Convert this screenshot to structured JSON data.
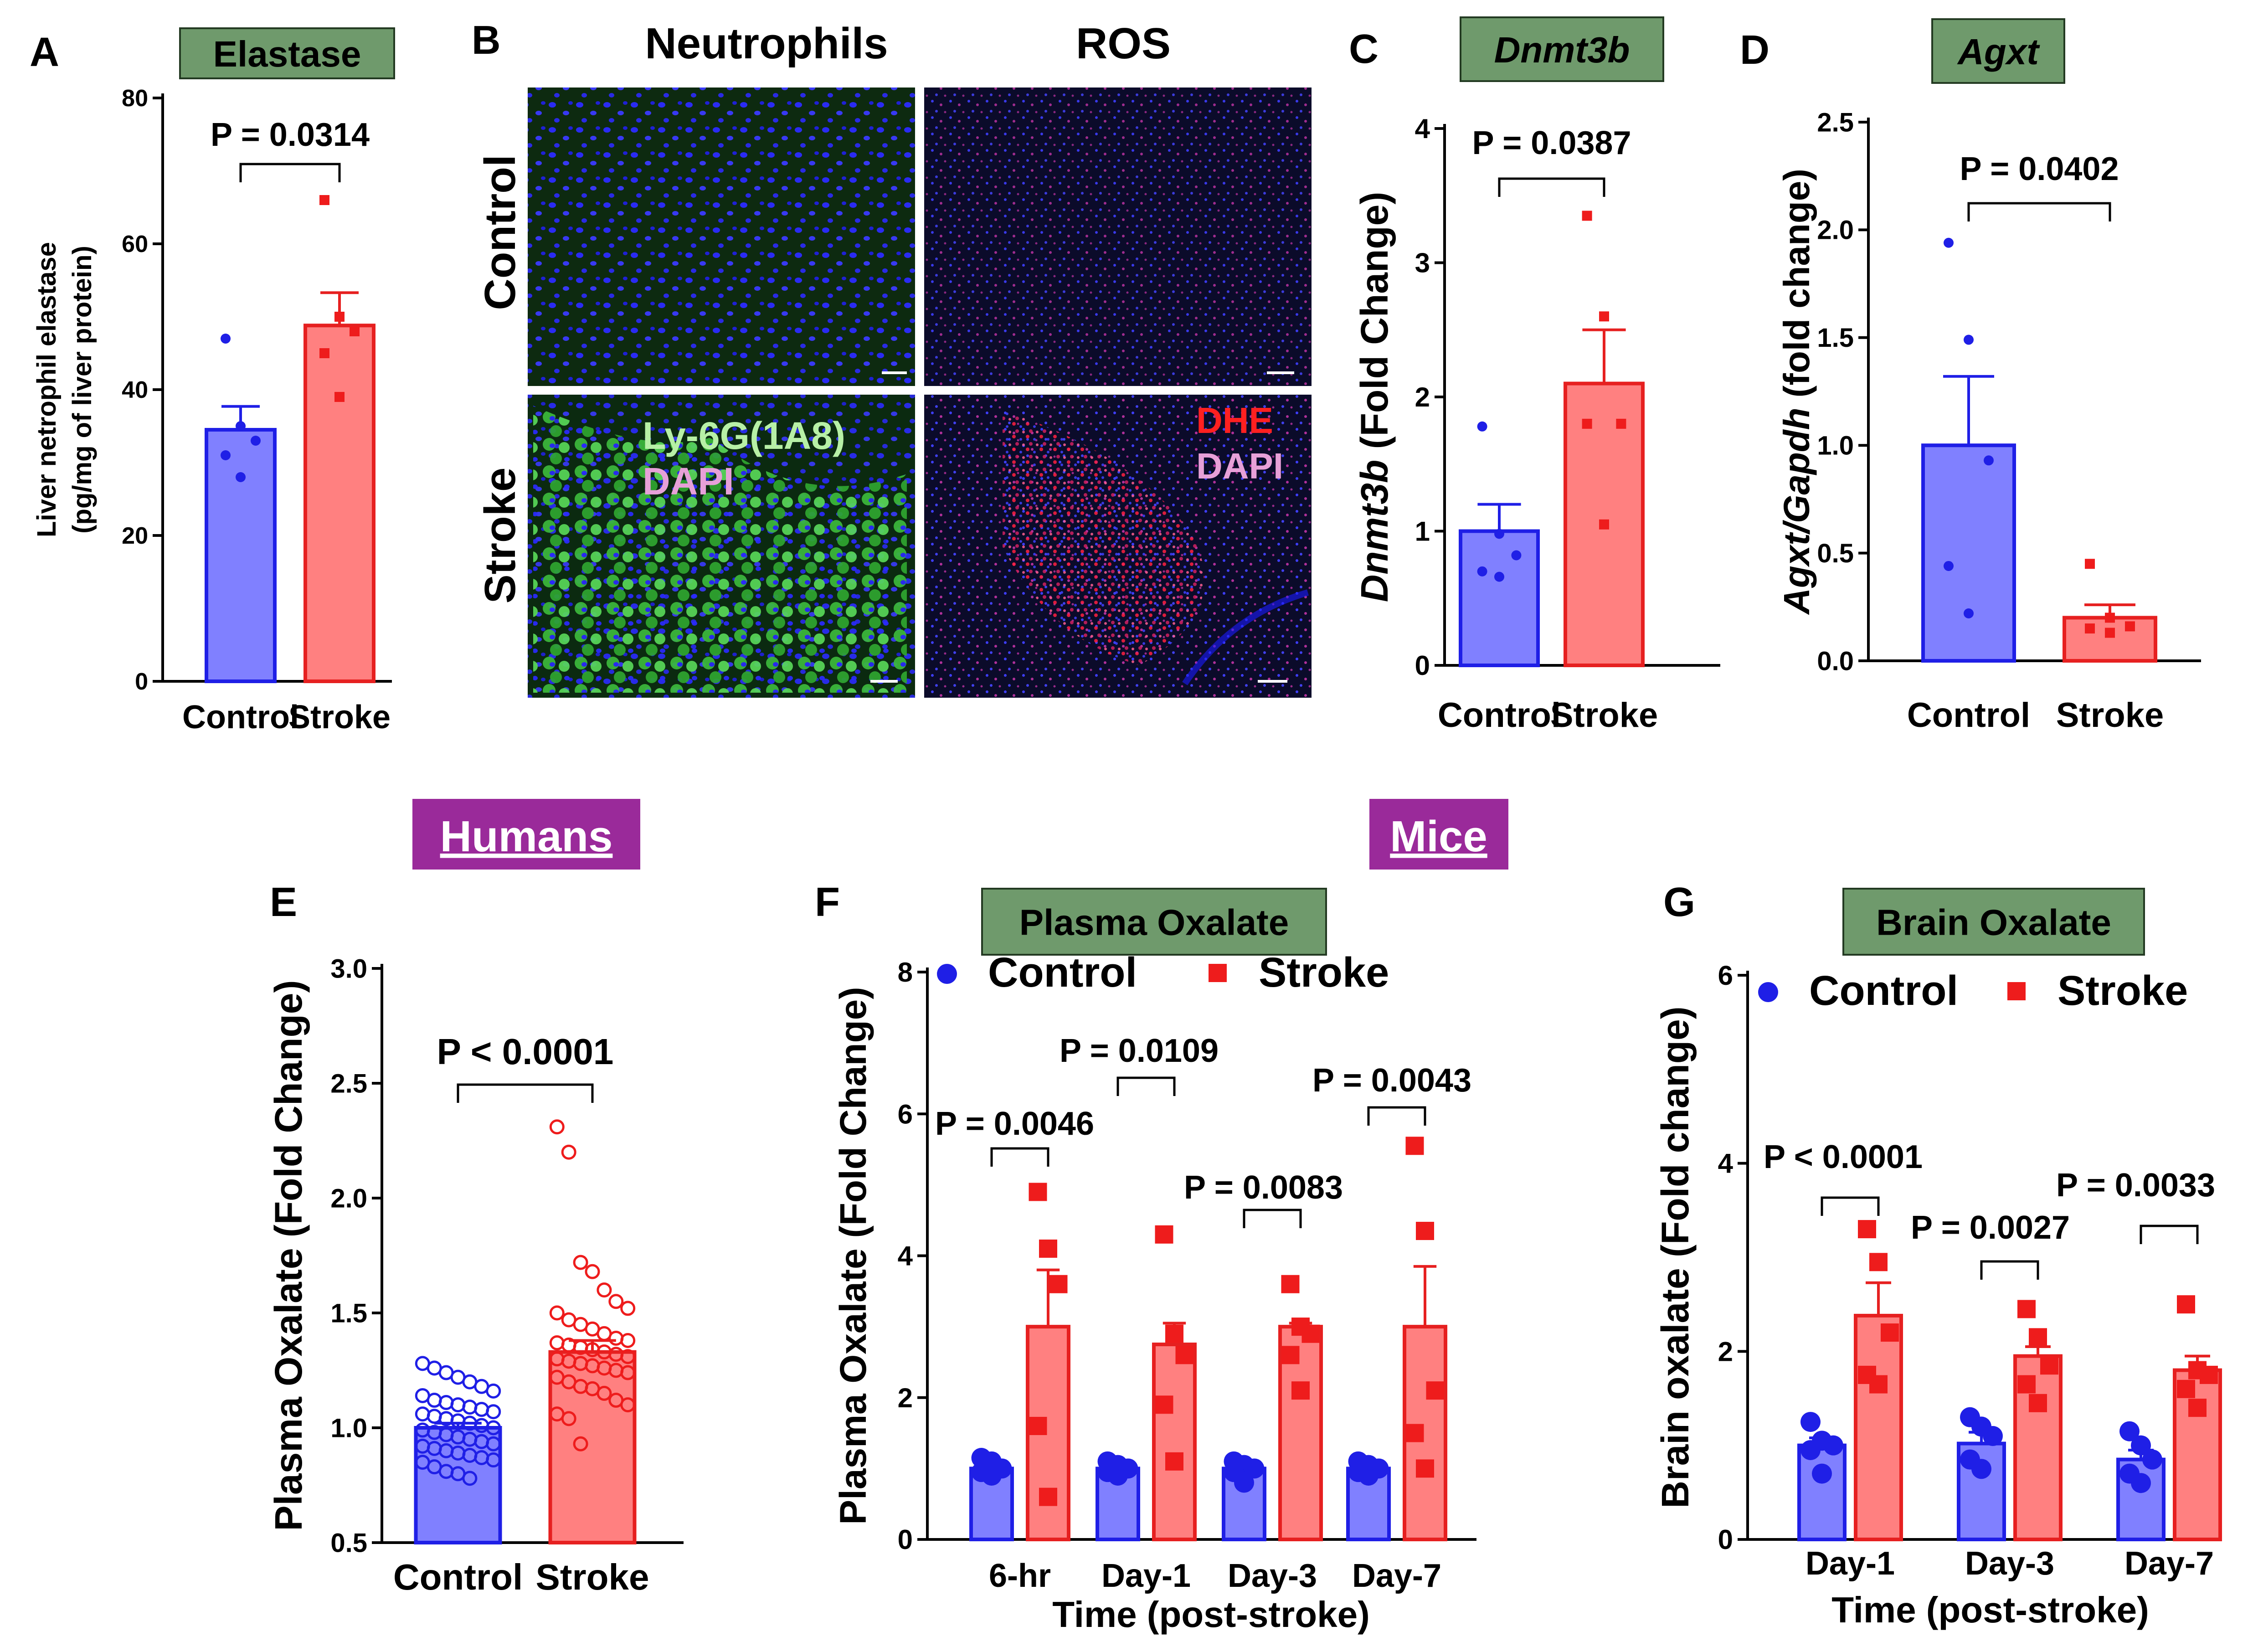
{
  "colors": {
    "control_fill": "#8080ff",
    "control_edge": "#1f1fe6",
    "control_dot": "#1f1fe6",
    "stroke_fill": "#ff8080",
    "stroke_edge": "#e62020",
    "stroke_dot": "#ee1c1c",
    "title_box": "#6f9a6c",
    "tag_box": "#9a2a9a"
  },
  "labels": {
    "humans": "Humans",
    "mice": "Mice"
  },
  "micrographs": {
    "panel_letter": "B",
    "col_neutrophils": "Neutrophils",
    "col_ros": "ROS",
    "row_control": "Control",
    "row_stroke": "Stroke",
    "ly6g_label": "Ly-6G(1A8)",
    "dapi_label": "DAPI",
    "dhe_label": "DHE",
    "dapi_label2": "DAPI"
  },
  "chart_data": [
    {
      "id": "A",
      "type": "bar",
      "panel_letter": "A",
      "title": "Elastase",
      "title_italic": false,
      "ylabel_line1": "Liver netrophil elastase",
      "ylabel_line2": "(pg/mg of liver protein)",
      "ylabel_italic_prefix": "",
      "ylim": [
        0,
        80
      ],
      "yticks": [
        0,
        20,
        40,
        60,
        80
      ],
      "ytick_labels": [
        "0",
        "20",
        "40",
        "60",
        "80"
      ],
      "categories": [
        "Control",
        "Stroke"
      ],
      "values": [
        34.5,
        48.8
      ],
      "sem": [
        3.2,
        4.5
      ],
      "points": [
        [
          47,
          35,
          33,
          31,
          28
        ],
        [
          66,
          50,
          48,
          45,
          39
        ]
      ],
      "pvalues": [
        {
          "label": "P = 0.0314",
          "from": 0,
          "to": 1
        }
      ]
    },
    {
      "id": "C",
      "type": "bar",
      "panel_letter": "C",
      "title": "Dnmt3b",
      "title_italic": true,
      "ylabel_line1": "",
      "ylabel_italic_prefix": "Dnmt3b",
      "ylabel_rest": " (Fold Change)",
      "ylim": [
        0,
        4
      ],
      "yticks": [
        0,
        1,
        2,
        3,
        4
      ],
      "ytick_labels": [
        "0",
        "1",
        "2",
        "3",
        "4"
      ],
      "categories": [
        "Control",
        "Stroke"
      ],
      "values": [
        1.0,
        2.1
      ],
      "sem": [
        0.2,
        0.4
      ],
      "points": [
        [
          1.78,
          0.98,
          0.82,
          0.7,
          0.66
        ],
        [
          3.35,
          2.6,
          1.8,
          1.8,
          1.05
        ]
      ],
      "pvalues": [
        {
          "label": "P = 0.0387",
          "from": 0,
          "to": 1
        }
      ]
    },
    {
      "id": "D",
      "type": "bar",
      "panel_letter": "D",
      "title": "Agxt",
      "title_italic": true,
      "ylabel_line1": "",
      "ylabel_italic_prefix": "Agxt/Gapdh",
      "ylabel_rest": " (fold change)",
      "ylim": [
        0,
        2.5
      ],
      "yticks": [
        0,
        0.5,
        1.0,
        1.5,
        2.0,
        2.5
      ],
      "ytick_labels": [
        "0.0",
        "0.5",
        "1.0",
        "1.5",
        "2.0",
        "2.5"
      ],
      "categories": [
        "Control",
        "Stroke"
      ],
      "values": [
        1.0,
        0.2
      ],
      "sem": [
        0.32,
        0.06
      ],
      "points": [
        [
          1.94,
          1.49,
          0.93,
          0.44,
          0.22
        ],
        [
          0.45,
          0.2,
          0.16,
          0.15,
          0.13
        ]
      ],
      "pvalues": [
        {
          "label": "P = 0.0402",
          "from": 0,
          "to": 1
        }
      ]
    },
    {
      "id": "E",
      "type": "bar",
      "panel_letter": "E",
      "title": "",
      "ylabel_line1": "Plasma Oxalate (Fold Change)",
      "ylim": [
        0.5,
        3.0
      ],
      "yticks": [
        0.5,
        1.0,
        1.5,
        2.0,
        2.5,
        3.0
      ],
      "ytick_labels": [
        "0.5",
        "1.0",
        "1.5",
        "2.0",
        "2.5",
        "3.0"
      ],
      "categories": [
        "Control",
        "Stroke"
      ],
      "values": [
        1.0,
        1.33
      ],
      "sem": [
        0.02,
        0.05
      ],
      "points": [
        [
          1.28,
          1.26,
          1.24,
          1.22,
          1.2,
          1.18,
          1.16,
          1.14,
          1.12,
          1.11,
          1.1,
          1.09,
          1.08,
          1.07,
          1.06,
          1.05,
          1.04,
          1.03,
          1.02,
          1.01,
          1.0,
          0.99,
          0.98,
          0.97,
          0.96,
          0.95,
          0.94,
          0.93,
          0.92,
          0.91,
          0.9,
          0.89,
          0.88,
          0.87,
          0.86,
          0.85,
          0.83,
          0.81,
          0.8,
          0.78
        ],
        [
          2.31,
          2.2,
          1.72,
          1.68,
          1.6,
          1.55,
          1.52,
          1.5,
          1.47,
          1.45,
          1.43,
          1.41,
          1.39,
          1.38,
          1.37,
          1.36,
          1.35,
          1.34,
          1.33,
          1.32,
          1.31,
          1.3,
          1.29,
          1.28,
          1.27,
          1.26,
          1.25,
          1.24,
          1.22,
          1.2,
          1.18,
          1.17,
          1.15,
          1.12,
          1.1,
          1.06,
          1.04,
          0.93
        ]
      ],
      "pvalues": [
        {
          "label": "P < 0.0001",
          "from": 0,
          "to": 1
        }
      ]
    },
    {
      "id": "F",
      "type": "grouped-bar",
      "panel_letter": "F",
      "title": "Plasma Oxalate",
      "ylabel_line1": "Plasma Oxalate (Fold Change)",
      "xlabel": "Time (post-stroke)",
      "ylim": [
        0,
        8
      ],
      "yticks": [
        0,
        2,
        4,
        6,
        8
      ],
      "ytick_labels": [
        "0",
        "2",
        "4",
        "6",
        "8"
      ],
      "categories": [
        "6-hr",
        "Day-1",
        "Day-3",
        "Day-7"
      ],
      "legend": [
        "Control",
        "Stroke"
      ],
      "series": [
        {
          "name": "Control",
          "values": [
            1.0,
            1.0,
            1.0,
            1.0
          ],
          "sem": [
            0.05,
            0.05,
            0.05,
            0.05
          ],
          "points": [
            [
              1.15,
              1.1,
              1.0,
              0.95,
              0.9
            ],
            [
              1.1,
              1.05,
              1.0,
              0.95,
              0.9
            ],
            [
              1.1,
              1.05,
              1.0,
              0.95,
              0.8
            ],
            [
              1.1,
              1.05,
              1.0,
              0.95,
              0.9
            ]
          ]
        },
        {
          "name": "Stroke",
          "values": [
            3.0,
            2.75,
            3.0,
            3.0
          ],
          "sem": [
            0.8,
            0.3,
            0.05,
            0.85
          ],
          "points": [
            [
              4.9,
              4.1,
              3.6,
              1.6,
              0.6
            ],
            [
              4.3,
              2.9,
              2.6,
              1.9,
              1.1
            ],
            [
              3.6,
              3.0,
              2.9,
              2.6,
              2.1
            ],
            [
              5.55,
              4.35,
              2.1,
              1.5,
              1.0
            ]
          ]
        }
      ],
      "pvalues": [
        {
          "label": "P = 0.0046",
          "group": 0
        },
        {
          "label": "P = 0.0109",
          "group": 1
        },
        {
          "label": "P = 0.0083",
          "group": 2
        },
        {
          "label": "P = 0.0043",
          "group": 3
        }
      ]
    },
    {
      "id": "G",
      "type": "grouped-bar",
      "panel_letter": "G",
      "title": "Brain Oxalate",
      "ylabel_line1": "Brain oxalate (Fold change)",
      "xlabel": "Time (post-stroke)",
      "ylim": [
        0,
        6
      ],
      "yticks": [
        0,
        2,
        4,
        6
      ],
      "ytick_labels": [
        "0",
        "2",
        "4",
        "6"
      ],
      "categories": [
        "Day-1",
        "Day-3",
        "Day-7"
      ],
      "legend": [
        "Control",
        "Stroke"
      ],
      "series": [
        {
          "name": "Control",
          "values": [
            1.0,
            1.02,
            0.85
          ],
          "sem": [
            0.08,
            0.12,
            0.1
          ],
          "points": [
            [
              1.25,
              1.05,
              1.0,
              0.95,
              0.7
            ],
            [
              1.3,
              1.2,
              1.1,
              0.85,
              0.75
            ],
            [
              1.15,
              1.0,
              0.85,
              0.7,
              0.6
            ]
          ]
        },
        {
          "name": "Stroke",
          "values": [
            2.38,
            1.95,
            1.8
          ],
          "sem": [
            0.35,
            0.1,
            0.15
          ],
          "points": [
            [
              3.3,
              2.95,
              2.2,
              1.75,
              1.65
            ],
            [
              2.45,
              2.15,
              1.85,
              1.65,
              1.45
            ],
            [
              2.5,
              1.8,
              1.75,
              1.6,
              1.4
            ]
          ]
        }
      ],
      "pvalues": [
        {
          "label": "P < 0.0001",
          "group": 0
        },
        {
          "label": "P = 0.0027",
          "group": 1
        },
        {
          "label": "P = 0.0033",
          "group": 2
        }
      ]
    }
  ]
}
